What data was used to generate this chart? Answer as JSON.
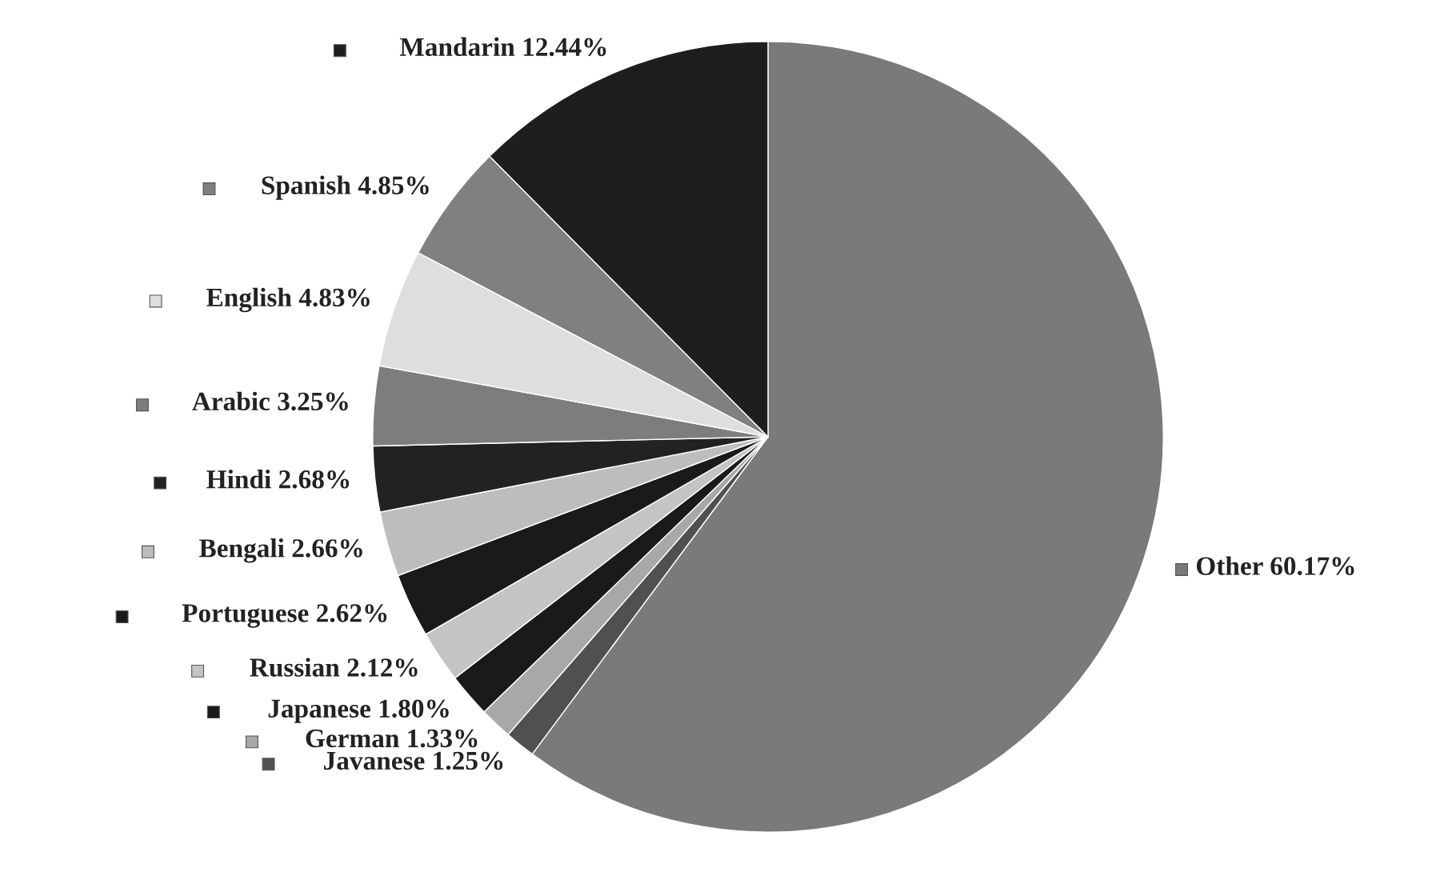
{
  "chart_data": {
    "type": "pie",
    "categories": [
      "Other",
      "Javanese",
      "German",
      "Japanese",
      "Russian",
      "Portuguese",
      "Bengali",
      "Hindi",
      "Arabic",
      "English",
      "Spanish",
      "Mandarin"
    ],
    "values": [
      60.17,
      1.25,
      1.33,
      1.8,
      2.12,
      2.62,
      2.66,
      2.68,
      3.25,
      4.83,
      4.85,
      12.44
    ],
    "value_labels": [
      "60.17%",
      "1.25%",
      "1.33%",
      "1.80%",
      "2.12%",
      "2.62%",
      "2.66%",
      "2.68%",
      "3.25%",
      "4.83%",
      "4.85%",
      "12.44%"
    ],
    "colors": [
      "#7a7a7a",
      "#505050",
      "#a8a8a8",
      "#1a1a1a",
      "#c4c4c4",
      "#1a1a1a",
      "#bdbdbd",
      "#222222",
      "#7d7d7d",
      "#dedede",
      "#808080",
      "#1e1e1e"
    ],
    "legend": "left"
  }
}
